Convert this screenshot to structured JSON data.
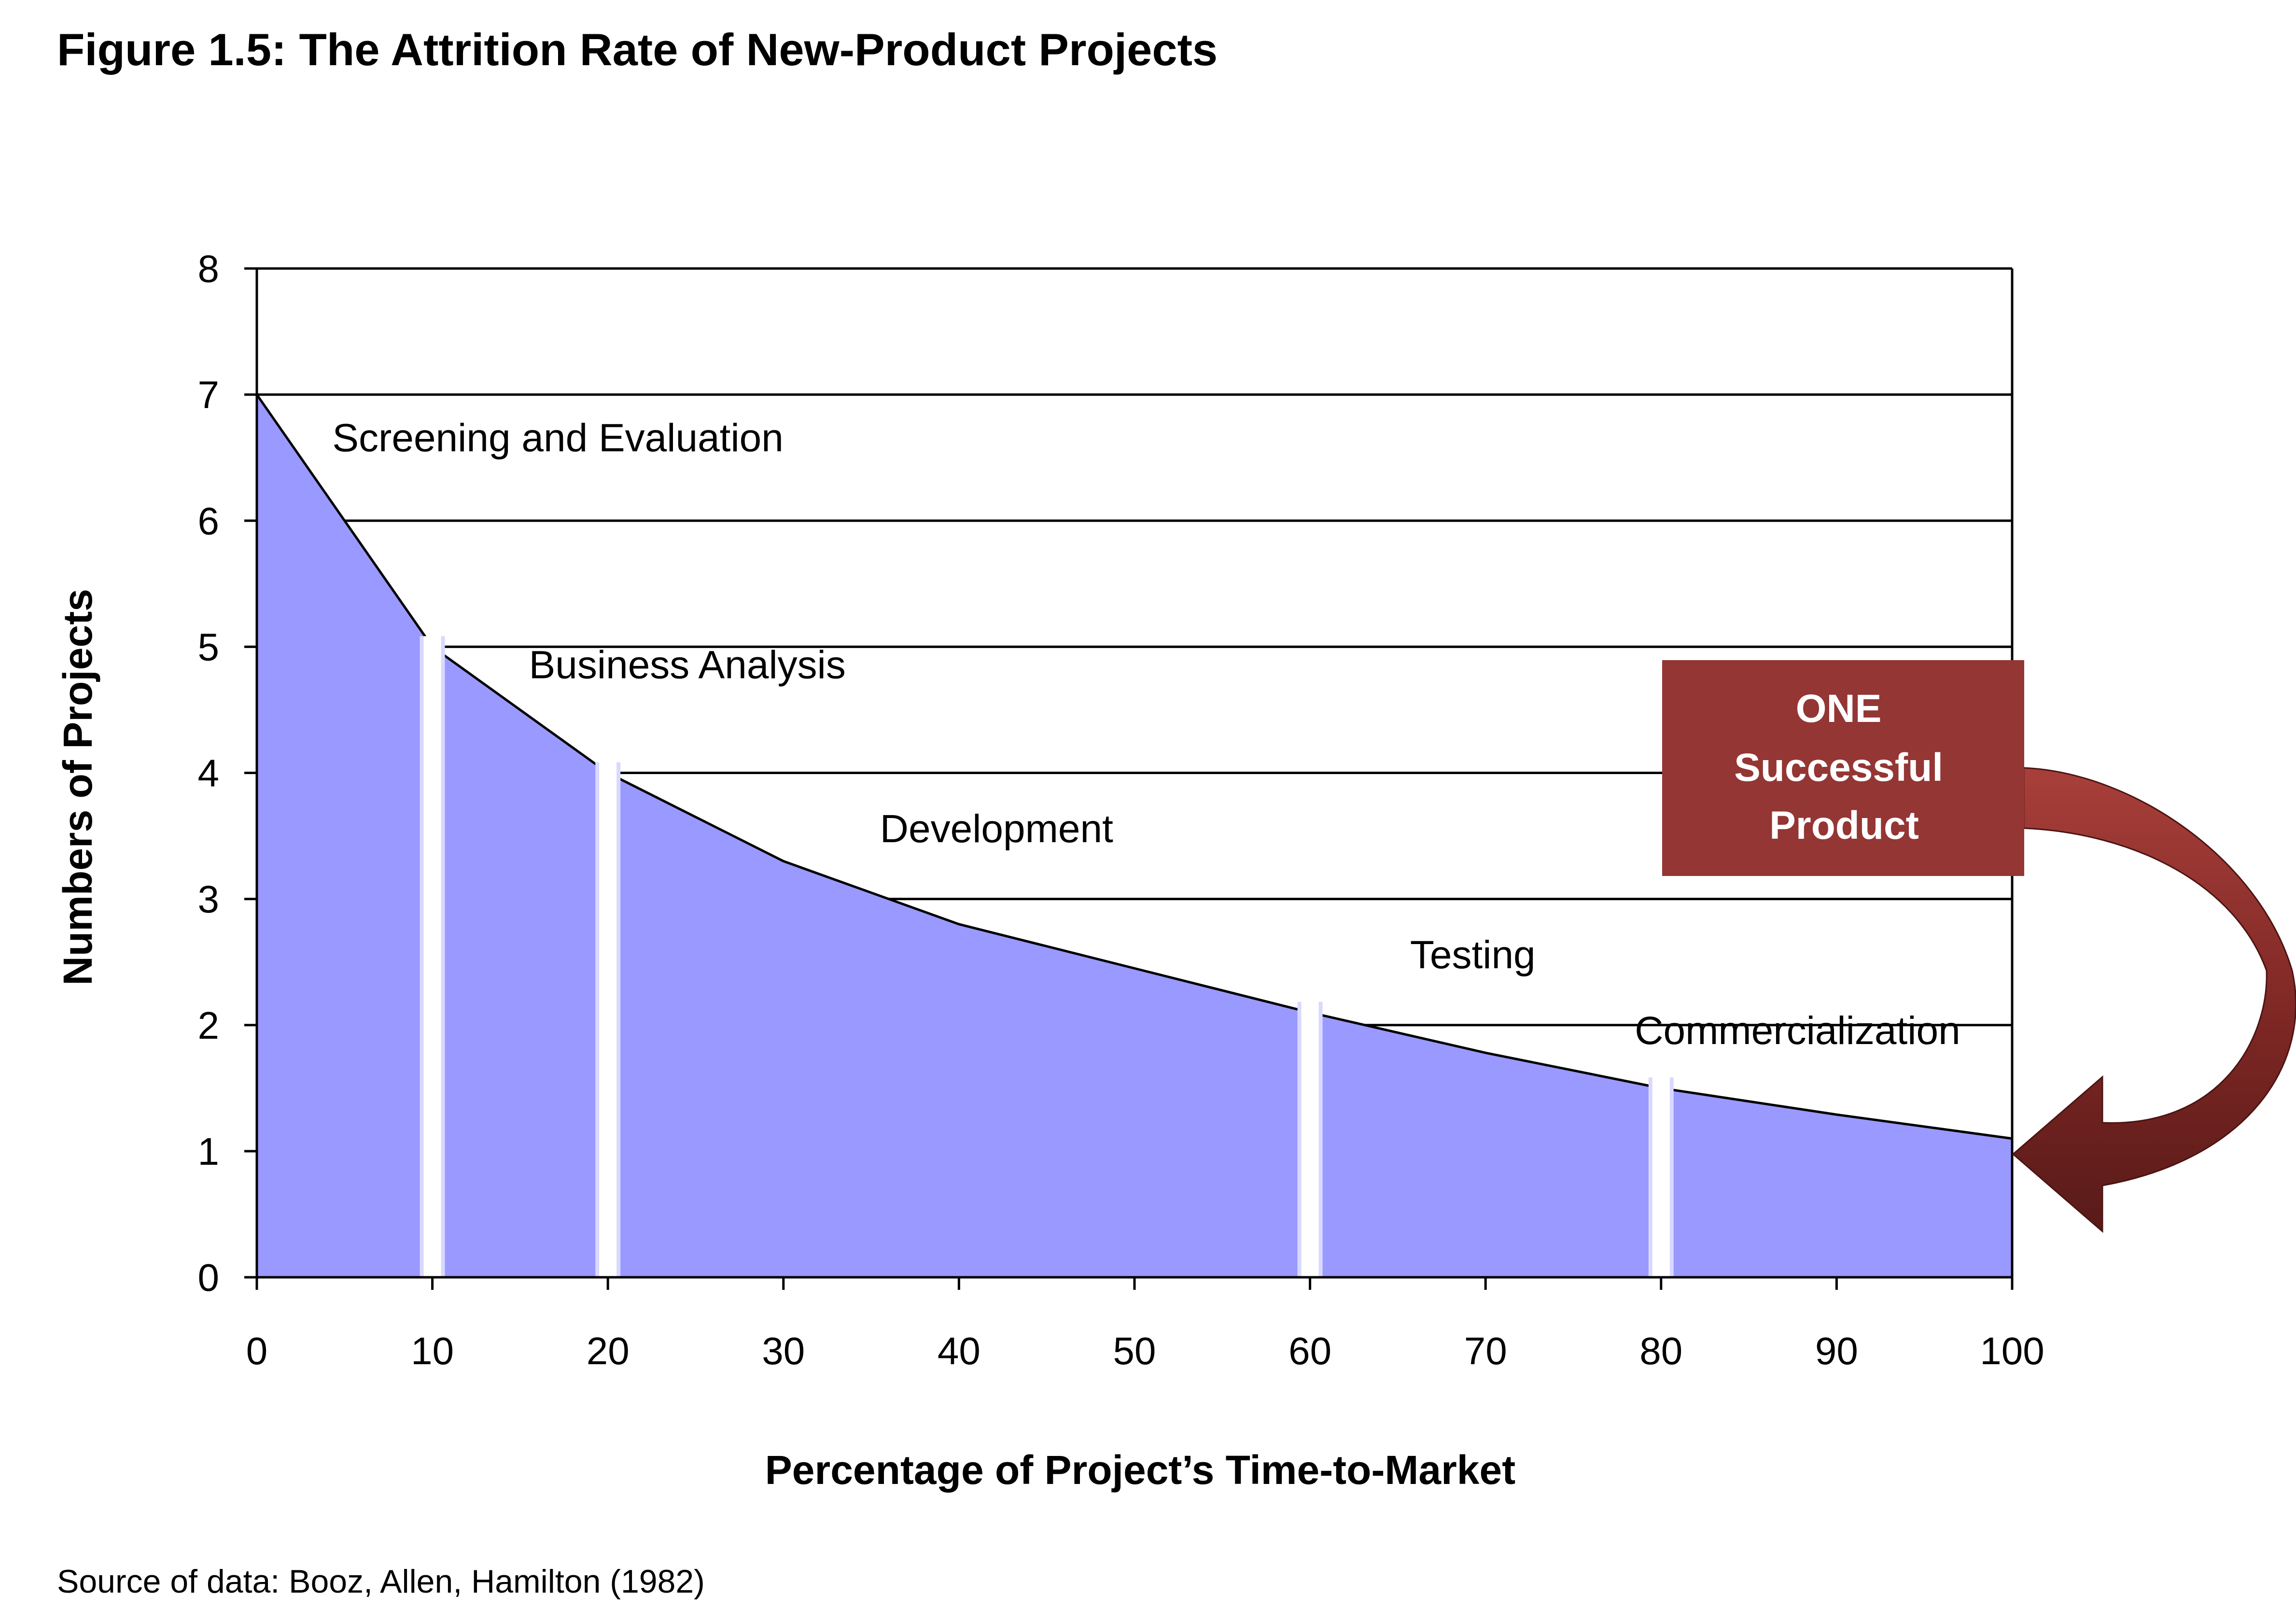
{
  "figure_title": "Figure 1.5: The Attrition Rate of New-Product Projects",
  "source_note": "Source of data: Booz, Allen, Hamilton (1982)",
  "colors": {
    "area_fill": "#9999ff",
    "divider": "#ffffff",
    "callout_fill": "#943634",
    "arrow_light": "#9a3a36",
    "arrow_dark": "#5e1d1a",
    "grid": "#000000"
  },
  "callout": {
    "lines": [
      "ONE",
      "Successful",
      "Product"
    ]
  },
  "chart_data": {
    "type": "area",
    "title": "Figure 1.5: The Attrition Rate of New-Product Projects",
    "xlabel": "Percentage of Project’s Time-to-Market",
    "ylabel": "Numbers of Projects",
    "xlim": [
      0,
      100
    ],
    "ylim": [
      0,
      8
    ],
    "grid": true,
    "x_ticks": [
      0,
      10,
      20,
      30,
      40,
      50,
      60,
      70,
      80,
      90,
      100
    ],
    "y_ticks": [
      0,
      1,
      2,
      3,
      4,
      5,
      6,
      7,
      8
    ],
    "series": [
      {
        "name": "Number of projects",
        "x": [
          0,
          10,
          20,
          30,
          40,
          50,
          60,
          70,
          80,
          90,
          100
        ],
        "values": [
          7,
          5,
          4,
          3.3,
          2.8,
          2.45,
          2.1,
          1.78,
          1.5,
          1.29,
          1.1
        ]
      }
    ],
    "stage_dividers": [
      10,
      20,
      60,
      80
    ],
    "stages": [
      {
        "name": "Screening and Evaluation",
        "x": 4.3,
        "y": 6.55
      },
      {
        "name": "Business Analysis",
        "x": 15.5,
        "y": 4.75
      },
      {
        "name": "Development",
        "x": 35.5,
        "y": 3.45
      },
      {
        "name": "Testing",
        "x": 65.7,
        "y": 2.45
      },
      {
        "name": "Commercialization",
        "x": 78.5,
        "y": 1.85
      }
    ]
  }
}
